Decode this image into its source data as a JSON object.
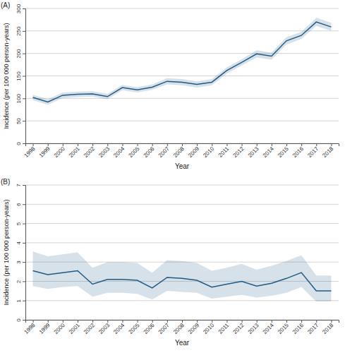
{
  "chart_data": [
    {
      "type": "line",
      "title": "(A)",
      "x_label": "Year",
      "y_label": "Incidence (per 100 000 person-years)",
      "x": [
        1998,
        1999,
        2000,
        2001,
        2002,
        2003,
        2004,
        2005,
        2006,
        2007,
        2008,
        2009,
        2010,
        2011,
        2012,
        2013,
        2014,
        2015,
        2016,
        2017,
        2018
      ],
      "series": [
        {
          "name": "Incidence",
          "color": "#1f5a85",
          "values": [
            102,
            92,
            107,
            109,
            110,
            104,
            124,
            119,
            125,
            138,
            136,
            131,
            136,
            162,
            180,
            199,
            194,
            228,
            240,
            270,
            259
          ],
          "lower": [
            96,
            86,
            101,
            103,
            104,
            98,
            118,
            113,
            119,
            131,
            129,
            124,
            129,
            155,
            173,
            191,
            186,
            220,
            232,
            261,
            250
          ],
          "upper": [
            108,
            98,
            113,
            115,
            116,
            110,
            130,
            125,
            131,
            145,
            143,
            138,
            143,
            169,
            187,
            207,
            202,
            236,
            248,
            279,
            268
          ]
        }
      ],
      "xlim": [
        1997.5,
        2018.5
      ],
      "xticks": [
        1998,
        1999,
        2000,
        2001,
        2002,
        2003,
        2004,
        2005,
        2006,
        2007,
        2008,
        2009,
        2010,
        2011,
        2012,
        2013,
        2014,
        2015,
        2016,
        2017,
        2018
      ],
      "ylim": [
        0,
        300
      ],
      "yticks": [
        0,
        50,
        100,
        150,
        200,
        250,
        300
      ],
      "grid": true
    },
    {
      "type": "line",
      "title": "(B)",
      "x_label": "Year",
      "y_label": "Incidence (per 100 000 person-years)",
      "x": [
        1998,
        1999,
        2000,
        2001,
        2002,
        2003,
        2004,
        2005,
        2006,
        2007,
        2008,
        2009,
        2010,
        2011,
        2012,
        2013,
        2014,
        2015,
        2016,
        2017,
        2018
      ],
      "series": [
        {
          "name": "Incidence",
          "color": "#1f5a85",
          "values": [
            2.55,
            2.35,
            2.45,
            2.55,
            1.85,
            2.1,
            2.1,
            2.05,
            1.65,
            2.2,
            2.15,
            2.05,
            1.7,
            1.85,
            2.0,
            1.75,
            1.9,
            2.15,
            2.45,
            1.5,
            1.5
          ],
          "lower": [
            1.75,
            1.6,
            1.7,
            1.75,
            1.2,
            1.4,
            1.4,
            1.35,
            1.05,
            1.5,
            1.45,
            1.4,
            1.1,
            1.2,
            1.3,
            1.15,
            1.25,
            1.4,
            1.7,
            0.95,
            0.95
          ],
          "upper": [
            3.55,
            3.3,
            3.4,
            3.5,
            2.7,
            3.0,
            3.0,
            2.95,
            2.45,
            3.1,
            3.05,
            2.95,
            2.55,
            2.7,
            2.9,
            2.6,
            2.8,
            3.05,
            3.35,
            2.3,
            2.3
          ]
        }
      ],
      "xlim": [
        1997.5,
        2018.5
      ],
      "xticks": [
        1998,
        1999,
        2000,
        2001,
        2002,
        2003,
        2004,
        2005,
        2006,
        2007,
        2008,
        2009,
        2010,
        2011,
        2012,
        2013,
        2014,
        2015,
        2016,
        2017,
        2018
      ],
      "ylim": [
        0,
        7
      ],
      "yticks": [
        0,
        1,
        2,
        3,
        4,
        5,
        6,
        7
      ],
      "grid": true
    }
  ]
}
